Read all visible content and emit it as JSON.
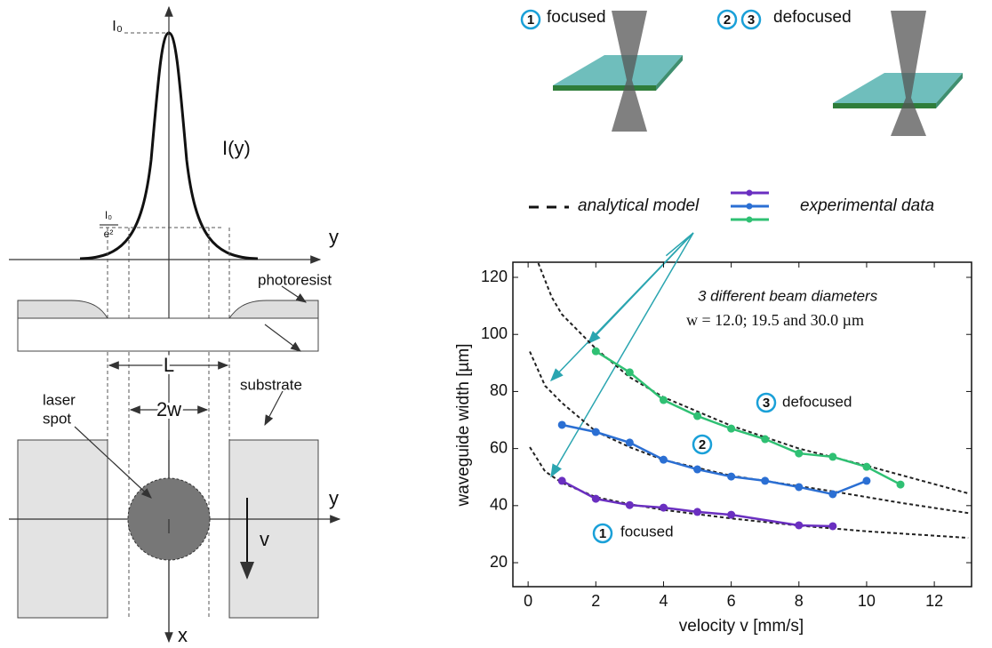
{
  "diagram": {
    "peak": "I₀",
    "curve": "I(y)",
    "level_num": "I₀",
    "level_den": "e²",
    "axis_y_top": "y",
    "photoresist": "photoresist",
    "substrate": "substrate",
    "L": "L",
    "two_w": "2w",
    "laser_spot": [
      "laser",
      "spot"
    ],
    "axis_y_bottom": "y",
    "velocity": "v",
    "axis_x": "x"
  },
  "beam_diagram": {
    "focused_markers": [
      "1"
    ],
    "focused": "focused",
    "defocused_markers": [
      "2",
      "3"
    ],
    "defocused": "defocused"
  },
  "chart_data": {
    "type": "line",
    "x_label": "velocity v [mm/s]",
    "y_label": "waveguide width [µm]",
    "xlim": [
      -0.45,
      13.1
    ],
    "ylim": [
      11.6,
      125.3
    ],
    "xticks": [
      0,
      2,
      4,
      6,
      8,
      10,
      12
    ],
    "yticks": [
      20,
      40,
      60,
      80,
      100,
      120
    ],
    "series": [
      {
        "color": "#6a2fc0",
        "x": [
          1,
          2,
          3,
          4,
          5,
          6,
          8,
          9
        ],
        "values": [
          48.7,
          42.4,
          40.2,
          39.3,
          37.8,
          36.8,
          33.1,
          32.8
        ]
      },
      {
        "color": "#2b6fd3",
        "x": [
          1,
          2,
          3,
          4,
          5,
          6,
          7,
          8,
          9,
          10
        ],
        "values": [
          68.3,
          65.8,
          62.1,
          56.1,
          52.7,
          50.2,
          48.7,
          46.5,
          44,
          48.7
        ]
      },
      {
        "color": "#2fc073",
        "x": [
          2,
          3,
          4,
          5,
          6,
          7,
          8,
          9,
          10,
          11
        ],
        "values": [
          94.1,
          86.7,
          77,
          71.4,
          67,
          63.3,
          58.3,
          57.1,
          53.6,
          47.4
        ]
      }
    ],
    "model": {
      "name": "analytical model",
      "color": "#222222",
      "curves": [
        {
          "x": [
            0.05,
            0.5,
            1,
            2,
            3,
            4,
            6,
            8,
            10,
            13
          ],
          "values": [
            60.5,
            52,
            48,
            43,
            40.5,
            38.5,
            35.5,
            33,
            31,
            28.7
          ]
        },
        {
          "x": [
            0.05,
            0.5,
            1,
            2,
            3,
            4,
            6,
            9,
            11,
            13
          ],
          "values": [
            94,
            82,
            76,
            66,
            60.5,
            56,
            50.5,
            45,
            41,
            37.4
          ]
        },
        {
          "x": [
            0.3,
            0.7,
            1,
            2,
            3,
            4,
            6,
            8,
            10,
            13
          ],
          "values": [
            125,
            113,
            107,
            95,
            85,
            78,
            68,
            60,
            54,
            44.3
          ]
        }
      ]
    },
    "legend_experimental": "experimental data",
    "annotations": {
      "beams": "3 different beam diameters",
      "formula": "w = 12.0; 19.5 and 30.0 µm",
      "marker_3": "3",
      "defocused": "defocused",
      "marker_2": "2",
      "marker_1": "1",
      "focused": "focused"
    }
  }
}
